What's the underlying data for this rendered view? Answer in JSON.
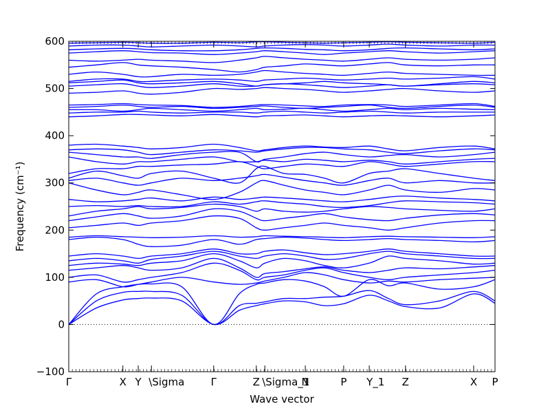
{
  "chart_data": {
    "type": "line",
    "xlabel": "Wave vector",
    "ylabel": "Frequency (cm⁻¹)",
    "ylim": [
      -100,
      600
    ],
    "xlim": [
      0,
      100
    ],
    "yticks": [
      -100,
      0,
      100,
      200,
      300,
      400,
      500,
      600
    ],
    "zero_line": true,
    "grid": false,
    "line_color": "#0000ff",
    "high_symmetry_points": [
      {
        "label": "Γ",
        "x": 0
      },
      {
        "label": "X",
        "x": 12.7
      },
      {
        "label": "Y",
        "x": 16.3
      },
      {
        "label": "\\Sigma",
        "x": 19.4
      },
      {
        "label": "Γ",
        "x": 34.0
      },
      {
        "label": "Z",
        "x": 44.0
      },
      {
        "label": "\\Sigma_1",
        "x": 46.0
      },
      {
        "label": "N",
        "x": 55.5
      },
      {
        "label": "P",
        "x": 64.5
      },
      {
        "label": "Y_1",
        "x": 70.5
      },
      {
        "label": "Z",
        "x": 79.0
      },
      {
        "label": "X",
        "x": 95.0
      },
      {
        "label": "P",
        "x": 100
      }
    ],
    "kx": [
      0,
      6.5,
      12.7,
      16.3,
      19.4,
      26.5,
      34.0,
      40.0,
      44.0,
      46.0,
      50.5,
      55.5,
      60.0,
      64.5,
      70.5,
      75.0,
      79.0,
      87.0,
      95.0,
      100
    ],
    "series": [
      {
        "values": [
          0,
          35,
          52,
          55,
          56,
          50,
          0,
          30,
          40,
          44,
          50,
          48,
          40,
          44,
          62,
          50,
          38,
          35,
          65,
          45
        ]
      },
      {
        "values": [
          0,
          50,
          68,
          70,
          70,
          62,
          0,
          40,
          45,
          48,
          55,
          55,
          58,
          60,
          72,
          55,
          42,
          50,
          70,
          50
        ]
      },
      {
        "values": [
          0,
          65,
          80,
          85,
          86,
          80,
          0,
          65,
          85,
          88,
          95,
          92,
          80,
          60,
          95,
          82,
          88,
          75,
          80,
          95
        ]
      },
      {
        "values": [
          90,
          95,
          80,
          85,
          90,
          100,
          90,
          85,
          88,
          92,
          100,
          110,
          105,
          95,
          88,
          92,
          90,
          95,
          98,
          100
        ]
      },
      {
        "values": [
          100,
          105,
          90,
          95,
          100,
          110,
          130,
          115,
          95,
          100,
          105,
          115,
          120,
          110,
          100,
          95,
          100,
          105,
          110,
          115
        ]
      },
      {
        "values": [
          115,
          120,
          125,
          120,
          115,
          120,
          140,
          120,
          100,
          108,
          112,
          118,
          122,
          115,
          110,
          115,
          120,
          118,
          122,
          125
        ]
      },
      {
        "values": [
          125,
          130,
          128,
          125,
          130,
          135,
          150,
          135,
          120,
          130,
          140,
          135,
          125,
          120,
          130,
          145,
          140,
          135,
          128,
          130
        ]
      },
      {
        "values": [
          135,
          140,
          135,
          130,
          138,
          145,
          155,
          145,
          140,
          145,
          150,
          145,
          138,
          140,
          150,
          155,
          150,
          145,
          140,
          140
        ]
      },
      {
        "values": [
          145,
          150,
          145,
          140,
          145,
          150,
          160,
          150,
          150,
          155,
          158,
          152,
          148,
          150,
          155,
          160,
          155,
          150,
          145,
          145
        ]
      },
      {
        "values": [
          180,
          185,
          180,
          170,
          165,
          168,
          180,
          170,
          180,
          182,
          185,
          183,
          180,
          178,
          180,
          182,
          180,
          178,
          175,
          178
        ]
      },
      {
        "values": [
          185,
          188,
          186,
          185,
          184,
          185,
          188,
          185,
          186,
          188,
          187,
          186,
          185,
          184,
          186,
          187,
          186,
          185,
          184,
          186
        ]
      },
      {
        "values": [
          205,
          210,
          215,
          210,
          215,
          220,
          230,
          225,
          205,
          200,
          205,
          210,
          215,
          210,
          205,
          200,
          205,
          215,
          220,
          220
        ]
      },
      {
        "values": [
          220,
          228,
          235,
          230,
          225,
          230,
          245,
          240,
          225,
          220,
          225,
          230,
          235,
          228,
          222,
          220,
          225,
          232,
          235,
          232
        ]
      },
      {
        "values": [
          230,
          240,
          245,
          250,
          245,
          248,
          255,
          250,
          240,
          245,
          240,
          238,
          240,
          245,
          250,
          248,
          245,
          242,
          240,
          245
        ]
      },
      {
        "values": [
          250,
          252,
          250,
          252,
          250,
          250,
          260,
          255,
          260,
          262,
          258,
          255,
          250,
          248,
          252,
          258,
          262,
          260,
          258,
          255
        ]
      },
      {
        "values": [
          265,
          260,
          262,
          265,
          268,
          262,
          270,
          265,
          268,
          270,
          268,
          265,
          262,
          260,
          265,
          270,
          272,
          268,
          265,
          262
        ]
      },
      {
        "values": [
          300,
          285,
          275,
          280,
          285,
          275,
          265,
          280,
          300,
          305,
          295,
          285,
          280,
          275,
          285,
          295,
          285,
          280,
          288,
          285
        ]
      },
      {
        "values": [
          305,
          310,
          300,
          295,
          300,
          310,
          305,
          310,
          315,
          318,
          312,
          305,
          300,
          295,
          305,
          310,
          300,
          305,
          300,
          300
        ]
      },
      {
        "values": [
          310,
          325,
          315,
          310,
          320,
          325,
          310,
          300,
          330,
          335,
          320,
          318,
          310,
          300,
          320,
          325,
          330,
          320,
          310,
          305
        ]
      },
      {
        "values": [
          320,
          330,
          330,
          335,
          335,
          338,
          340,
          345,
          335,
          330,
          335,
          340,
          338,
          335,
          345,
          340,
          335,
          340,
          345,
          345
        ]
      },
      {
        "values": [
          355,
          345,
          340,
          345,
          345,
          350,
          355,
          345,
          345,
          348,
          345,
          350,
          348,
          345,
          348,
          345,
          340,
          345,
          350,
          352
        ]
      },
      {
        "values": [
          365,
          360,
          355,
          355,
          352,
          360,
          365,
          365,
          345,
          350,
          355,
          362,
          365,
          360,
          355,
          358,
          360,
          355,
          360,
          365
        ]
      },
      {
        "values": [
          370,
          372,
          370,
          365,
          360,
          365,
          370,
          368,
          365,
          368,
          372,
          375,
          375,
          372,
          370,
          365,
          362,
          368,
          372,
          370
        ]
      },
      {
        "values": [
          380,
          382,
          378,
          375,
          372,
          375,
          382,
          375,
          368,
          370,
          375,
          378,
          376,
          375,
          378,
          372,
          368,
          375,
          378,
          372
        ]
      },
      {
        "values": [
          440,
          442,
          445,
          445,
          444,
          442,
          445,
          442,
          440,
          442,
          443,
          444,
          442,
          440,
          442,
          443,
          442,
          440,
          442,
          444
        ]
      },
      {
        "values": [
          448,
          450,
          450,
          452,
          450,
          448,
          450,
          450,
          448,
          450,
          452,
          450,
          448,
          450,
          452,
          450,
          448,
          450,
          450,
          450
        ]
      },
      {
        "values": [
          455,
          455,
          452,
          455,
          458,
          455,
          452,
          455,
          458,
          455,
          456,
          458,
          455,
          452,
          455,
          458,
          455,
          458,
          456,
          455
        ]
      },
      {
        "values": [
          460,
          462,
          465,
          462,
          460,
          462,
          458,
          460,
          462,
          463,
          460,
          458,
          460,
          462,
          465,
          460,
          458,
          462,
          465,
          460
        ]
      },
      {
        "values": [
          465,
          466,
          468,
          466,
          465,
          464,
          460,
          462,
          465,
          466,
          465,
          463,
          462,
          465,
          466,
          465,
          462,
          465,
          468,
          462
        ]
      },
      {
        "values": [
          490,
          492,
          495,
          490,
          488,
          492,
          500,
          498,
          500,
          502,
          500,
          498,
          495,
          492,
          495,
          498,
          500,
          495,
          492,
          495
        ]
      },
      {
        "values": [
          505,
          508,
          510,
          505,
          502,
          505,
          510,
          505,
          505,
          508,
          510,
          508,
          505,
          502,
          505,
          508,
          505,
          508,
          510,
          508
        ]
      },
      {
        "values": [
          512,
          515,
          518,
          512,
          510,
          512,
          515,
          510,
          505,
          508,
          510,
          512,
          515,
          512,
          510,
          508,
          505,
          510,
          515,
          512
        ]
      },
      {
        "values": [
          515,
          520,
          520,
          515,
          515,
          518,
          520,
          518,
          515,
          518,
          520,
          522,
          520,
          518,
          520,
          522,
          520,
          522,
          525,
          520
        ]
      },
      {
        "values": [
          530,
          535,
          530,
          525,
          525,
          530,
          528,
          530,
          535,
          538,
          535,
          532,
          530,
          528,
          532,
          535,
          532,
          530,
          528,
          528
        ]
      },
      {
        "values": [
          545,
          550,
          555,
          550,
          548,
          545,
          540,
          535,
          540,
          545,
          548,
          552,
          550,
          548,
          552,
          555,
          550,
          548,
          550,
          550
        ]
      },
      {
        "values": [
          560,
          558,
          560,
          562,
          560,
          558,
          555,
          560,
          565,
          568,
          565,
          562,
          560,
          558,
          562,
          565,
          562,
          560,
          562,
          565
        ]
      },
      {
        "values": [
          575,
          578,
          580,
          578,
          576,
          575,
          572,
          575,
          578,
          580,
          578,
          575,
          572,
          575,
          578,
          580,
          578,
          575,
          578,
          580
        ]
      },
      {
        "values": [
          582,
          584,
          585,
          584,
          582,
          580,
          580,
          582,
          585,
          586,
          585,
          583,
          582,
          580,
          582,
          585,
          586,
          584,
          582,
          584
        ]
      },
      {
        "values": [
          590,
          592,
          592,
          590,
          588,
          590,
          592,
          590,
          588,
          590,
          592,
          593,
          592,
          590,
          592,
          594,
          592,
          590,
          592,
          592
        ]
      },
      {
        "values": [
          596,
          597,
          598,
          597,
          596,
          596,
          598,
          597,
          599,
          599,
          598,
          597,
          596,
          597,
          598,
          599,
          598,
          597,
          596,
          598
        ]
      }
    ]
  }
}
